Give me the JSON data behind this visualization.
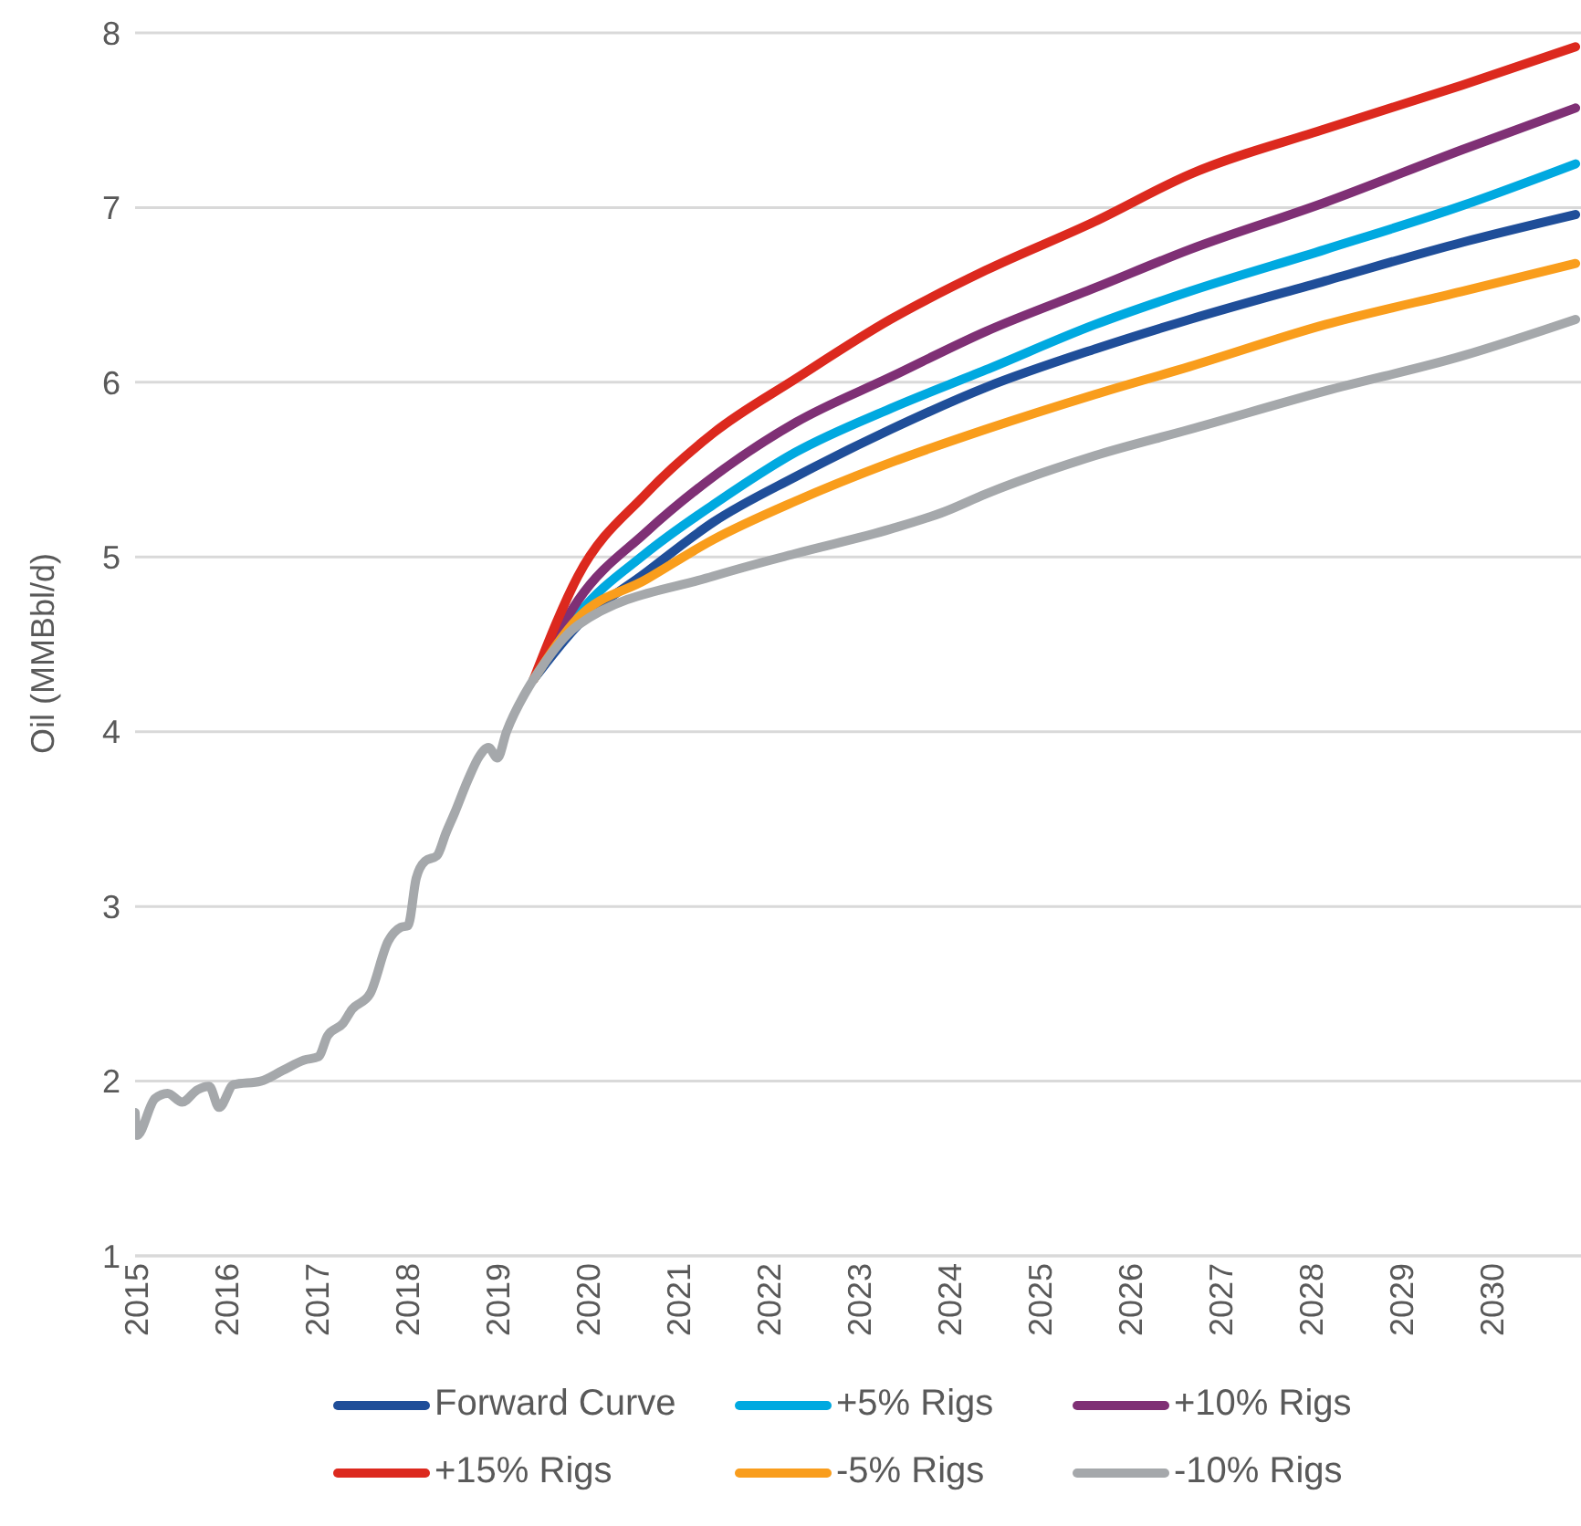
{
  "chart_data": {
    "type": "line",
    "ylabel": "Oil (MMBbl/d)",
    "xlim": [
      2015,
      2031
    ],
    "xticks": [
      2015,
      2016,
      2017,
      2018,
      2019,
      2020,
      2021,
      2022,
      2023,
      2024,
      2025,
      2026,
      2027,
      2028,
      2029,
      2030
    ],
    "ylim": [
      1,
      8
    ],
    "yticks": [
      1,
      2,
      3,
      4,
      5,
      6,
      7,
      8
    ],
    "grid": "y",
    "legend": "bottom",
    "marker": "none",
    "line_style": "solid",
    "series": [
      {
        "name": "Forward Curve",
        "color": "#1f4e99",
        "x": [
          2019.41,
          2019.9,
          2020.65,
          2021.4,
          2022.31,
          2023.36,
          2024.41,
          2025.62,
          2026.67,
          2028.17,
          2029.68,
          2030.94
        ],
        "values": [
          4.3,
          4.61,
          4.91,
          5.2,
          5.46,
          5.73,
          5.97,
          6.19,
          6.36,
          6.58,
          6.8,
          6.96
        ]
      },
      {
        "name": "+5% Rigs",
        "color": "#00a9e0",
        "x": [
          2019.41,
          2019.9,
          2020.65,
          2021.4,
          2022.31,
          2023.36,
          2024.41,
          2025.62,
          2026.67,
          2028.17,
          2029.68,
          2030.94
        ],
        "values": [
          4.3,
          4.67,
          5.02,
          5.3,
          5.6,
          5.85,
          6.07,
          6.33,
          6.52,
          6.76,
          7.01,
          7.25
        ]
      },
      {
        "name": "+10% Rigs",
        "color": "#7f3075",
        "x": [
          2019.41,
          2019.9,
          2020.65,
          2021.4,
          2022.31,
          2023.36,
          2024.41,
          2025.62,
          2026.67,
          2028.17,
          2029.68,
          2030.94
        ],
        "values": [
          4.3,
          4.75,
          5.14,
          5.46,
          5.77,
          6.03,
          6.29,
          6.54,
          6.76,
          7.03,
          7.33,
          7.57
        ]
      },
      {
        "name": "+15% Rigs",
        "color": "#dc291e",
        "x": [
          2019.41,
          2019.9,
          2020.65,
          2021.4,
          2022.31,
          2023.36,
          2024.41,
          2025.62,
          2026.67,
          2028.17,
          2029.68,
          2030.94
        ],
        "values": [
          4.3,
          4.89,
          5.36,
          5.71,
          6.02,
          6.36,
          6.64,
          6.92,
          7.19,
          7.45,
          7.7,
          7.92
        ]
      },
      {
        "name": "-5% Rigs",
        "color": "#f99d1c",
        "x": [
          2019.41,
          2019.9,
          2020.65,
          2021.4,
          2022.31,
          2023.36,
          2024.41,
          2025.62,
          2026.67,
          2028.17,
          2029.68,
          2030.94
        ],
        "values": [
          4.3,
          4.65,
          4.87,
          5.1,
          5.32,
          5.54,
          5.73,
          5.93,
          6.09,
          6.33,
          6.52,
          6.68
        ]
      },
      {
        "name": "-10% Rigs",
        "color": "#a5a8ab",
        "x": [
          2015.0,
          2015.02,
          2015.22,
          2015.36,
          2015.52,
          2015.69,
          2015.82,
          2015.93,
          2016.09,
          2016.39,
          2016.63,
          2016.87,
          2017.03,
          2017.13,
          2017.3,
          2017.4,
          2017.6,
          2017.8,
          2017.94,
          2018.02,
          2018.11,
          2018.21,
          2018.34,
          2018.44,
          2018.54,
          2018.68,
          2018.81,
          2018.91,
          2019.01,
          2019.11,
          2019.35,
          2019.41,
          2019.9,
          2021.4,
          2022.31,
          2023.36,
          2023.96,
          2024.41,
          2025.62,
          2026.67,
          2028.17,
          2029.68,
          2030.94
        ],
        "values": [
          1.82,
          1.69,
          1.9,
          1.93,
          1.88,
          1.95,
          1.97,
          1.85,
          1.98,
          2.0,
          2.06,
          2.12,
          2.14,
          2.26,
          2.33,
          2.41,
          2.5,
          2.8,
          2.88,
          2.89,
          3.16,
          3.26,
          3.29,
          3.42,
          3.54,
          3.72,
          3.86,
          3.91,
          3.85,
          4.0,
          4.25,
          4.3,
          4.61,
          4.89,
          5.02,
          5.16,
          5.26,
          5.36,
          5.58,
          5.73,
          5.95,
          6.15,
          6.36
        ]
      }
    ]
  }
}
